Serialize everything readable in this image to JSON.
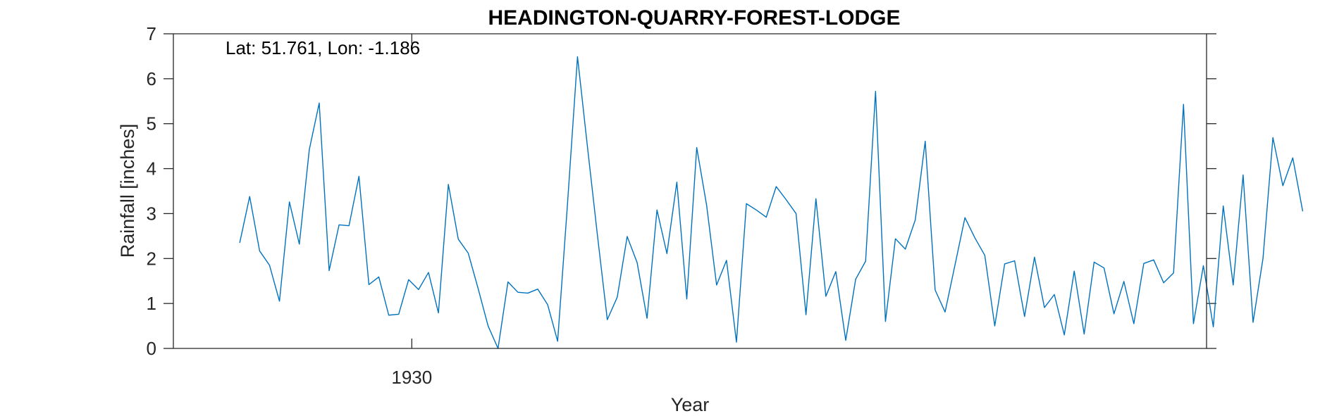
{
  "chart_data": {
    "type": "line",
    "title": "HEADINGTON-QUARRY-FOREST-LODGE",
    "xlabel": "Year",
    "ylabel": "Rainfall [inches]",
    "annotation": "Lat: 51.761, Lon: -1.186",
    "xlim": [
      1924.0,
      1950.0
    ],
    "ylim": [
      0,
      7
    ],
    "xticks": [
      1930
    ],
    "yticks": [
      0,
      1,
      2,
      3,
      4,
      5,
      6,
      7
    ],
    "line_color": "#0072BD",
    "grid": false,
    "legend": "none",
    "series": [
      {
        "x_start": 1925.67,
        "x_step": 0.25,
        "values": [
          2.35,
          3.38,
          2.17,
          1.85,
          1.05,
          3.26,
          2.32,
          4.42,
          5.46,
          1.73,
          2.75,
          2.73,
          3.83,
          1.42,
          1.59,
          0.74,
          0.76,
          1.53,
          1.31,
          1.69,
          0.79,
          3.65,
          2.43,
          2.12,
          1.33,
          0.5,
          0.0,
          1.48,
          1.25,
          1.23,
          1.32,
          0.97,
          0.16,
          3.24,
          6.49,
          4.49,
          2.53,
          0.64,
          1.14,
          2.49,
          1.91,
          0.67,
          3.08,
          2.11,
          3.7,
          1.1,
          4.47,
          3.18,
          1.41,
          1.96,
          0.14,
          3.22,
          3.08,
          2.92,
          3.6,
          3.31,
          3.0,
          0.75,
          3.33,
          1.16,
          1.71,
          0.18,
          1.54,
          1.94,
          5.72,
          0.6,
          2.44,
          2.21,
          2.86,
          4.61,
          1.3,
          0.81,
          1.86,
          2.91,
          2.46,
          2.07,
          0.5,
          1.88,
          1.95,
          0.71,
          2.03,
          0.91,
          1.2,
          0.3,
          1.72,
          0.32,
          1.92,
          1.79,
          0.77,
          1.49,
          0.55,
          1.89,
          1.97,
          1.46,
          1.68,
          5.43,
          0.55,
          1.84,
          0.48,
          3.17,
          1.41,
          3.86,
          0.58,
          2.0,
          4.69,
          3.62,
          4.24,
          3.05
        ]
      }
    ]
  }
}
